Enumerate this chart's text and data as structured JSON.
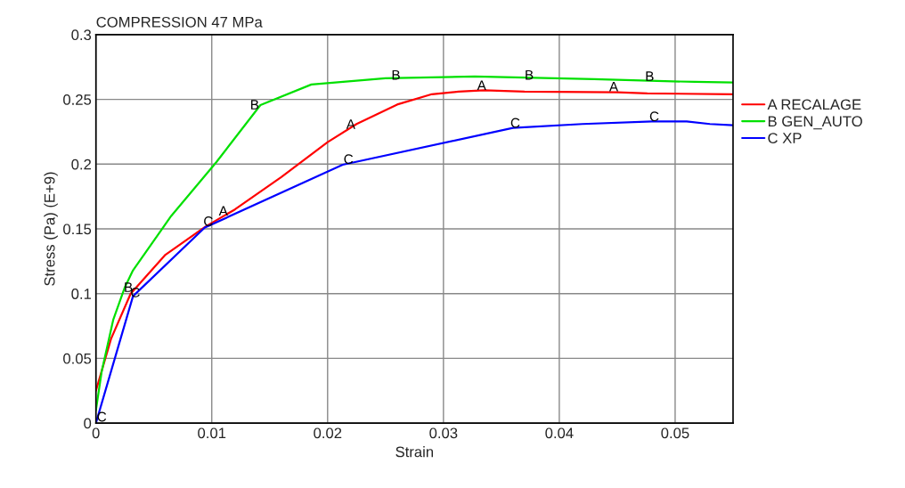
{
  "chart_data": {
    "type": "line",
    "title": "COMPRESSION 47 MPa",
    "xlabel": "Strain",
    "ylabel": "Stress (Pa) (E+9)",
    "xlim": [
      0,
      0.055
    ],
    "ylim": [
      0,
      0.3
    ],
    "xticks": [
      0,
      0.01,
      0.02,
      0.03,
      0.04,
      0.05
    ],
    "yticks": [
      0,
      0.05,
      0.1,
      0.15,
      0.2,
      0.25,
      0.3
    ],
    "grid": true,
    "legend": "right",
    "series": [
      {
        "name": "A RECALAGE",
        "color": "#ff0000",
        "x": [
          0,
          0.0013,
          0.003,
          0.006,
          0.0095,
          0.012,
          0.016,
          0.02,
          0.0225,
          0.026,
          0.029,
          0.0313,
          0.0335,
          0.037,
          0.045,
          0.0476,
          0.055
        ],
        "values": [
          0.025,
          0.065,
          0.1,
          0.13,
          0.152,
          0.165,
          0.19,
          0.217,
          0.231,
          0.246,
          0.254,
          0.256,
          0.257,
          0.256,
          0.2555,
          0.2546,
          0.254
        ]
      },
      {
        "name": "B GEN_AUTO",
        "color": "#00e000",
        "x": [
          0,
          0.0005,
          0.0015,
          0.0025,
          0.0032,
          0.0065,
          0.0104,
          0.0142,
          0.0186,
          0.025,
          0.0327,
          0.043,
          0.0517,
          0.055
        ],
        "values": [
          0.01,
          0.04,
          0.08,
          0.105,
          0.118,
          0.16,
          0.2016,
          0.2456,
          0.2615,
          0.2663,
          0.2677,
          0.2656,
          0.2635,
          0.263
        ]
      },
      {
        "name": "C XP",
        "color": "#0000ff",
        "x": [
          0,
          0.0032,
          0.0094,
          0.0213,
          0.036,
          0.042,
          0.048,
          0.051,
          0.053,
          0.055
        ],
        "values": [
          0,
          0.098,
          0.151,
          0.1995,
          0.228,
          0.231,
          0.233,
          0.233,
          0.231,
          0.23
        ]
      }
    ],
    "annotations": [
      {
        "text": "A",
        "x": 0.011,
        "y": 0.163
      },
      {
        "text": "A",
        "x": 0.022,
        "y": 0.23
      },
      {
        "text": "A",
        "x": 0.0333,
        "y": 0.26
      },
      {
        "text": "A",
        "x": 0.0447,
        "y": 0.259
      },
      {
        "text": "B",
        "x": 0.0028,
        "y": 0.104
      },
      {
        "text": "B",
        "x": 0.0137,
        "y": 0.245
      },
      {
        "text": "B",
        "x": 0.0259,
        "y": 0.268
      },
      {
        "text": "B",
        "x": 0.0374,
        "y": 0.268
      },
      {
        "text": "B",
        "x": 0.0478,
        "y": 0.267
      },
      {
        "text": "C",
        "x": 0.0005,
        "y": 0.004
      },
      {
        "text": "C",
        "x": 0.0034,
        "y": 0.1
      },
      {
        "text": "C",
        "x": 0.0097,
        "y": 0.155
      },
      {
        "text": "C",
        "x": 0.0218,
        "y": 0.203
      },
      {
        "text": "C",
        "x": 0.0362,
        "y": 0.231
      },
      {
        "text": "C",
        "x": 0.0482,
        "y": 0.236
      }
    ]
  }
}
